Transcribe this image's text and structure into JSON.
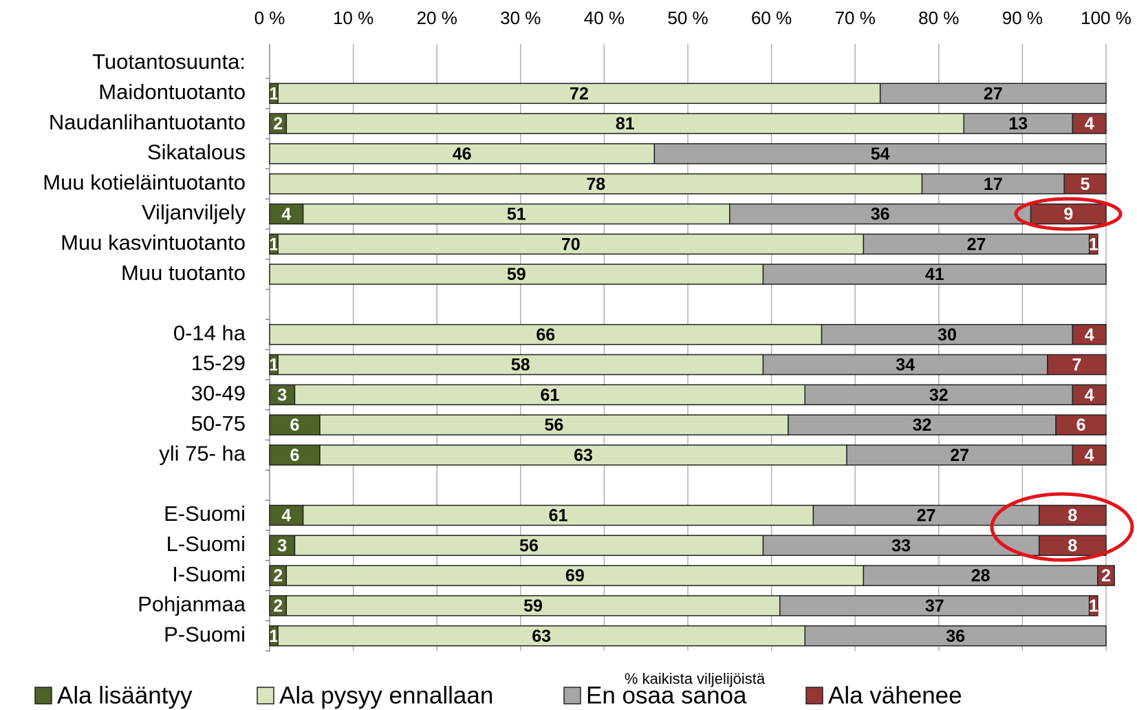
{
  "chart_data": {
    "type": "stacked_barh",
    "xlabel": "% kaikista viljelijöistä",
    "categories": [
      "Tuotantosuunta:",
      "Maidontuotanto",
      "Naudanlihantuotanto",
      "Sikatalous",
      "Muu kotieläintuotanto",
      "Viljanviljely",
      "Muu kasvintuotanto",
      "Muu tuotanto",
      null,
      "0-14 ha",
      "15-29",
      "30-49",
      "50-75",
      "yli 75- ha",
      null,
      "E-Suomi",
      "L-Suomi",
      "I-Suomi",
      "Pohjanmaa",
      "P-Suomi"
    ],
    "series": [
      {
        "name": "Ala lisääntyy",
        "color": "#4f6228",
        "label_color": "#ffffff",
        "values": [
          null,
          1,
          2,
          null,
          null,
          4,
          1,
          null,
          null,
          null,
          1,
          3,
          6,
          6,
          null,
          4,
          3,
          2,
          2,
          1
        ]
      },
      {
        "name": "Ala pysyy ennallaan",
        "color": "#d7e4bd",
        "label_color": "#000000",
        "values": [
          null,
          72,
          81,
          46,
          78,
          51,
          70,
          59,
          null,
          66,
          58,
          61,
          56,
          63,
          null,
          61,
          56,
          69,
          59,
          63
        ]
      },
      {
        "name": "En osaa sanoa",
        "color": "#a6a6a6",
        "label_color": "#000000",
        "values": [
          null,
          27,
          13,
          54,
          17,
          36,
          27,
          41,
          null,
          30,
          34,
          32,
          32,
          27,
          null,
          27,
          33,
          28,
          37,
          36
        ]
      },
      {
        "name": "Ala vähenee",
        "color": "#953735",
        "label_color": "#ffffff",
        "values": [
          null,
          null,
          4,
          null,
          5,
          9,
          1,
          null,
          null,
          4,
          7,
          4,
          6,
          4,
          null,
          8,
          8,
          2,
          1,
          null
        ]
      }
    ],
    "xlim": [
      0,
      100
    ],
    "xticks": [
      {
        "value": 0,
        "label": "0 %"
      },
      {
        "value": 10,
        "label": "10 %"
      },
      {
        "value": 20,
        "label": "20 %"
      },
      {
        "value": 30,
        "label": "30 %"
      },
      {
        "value": 40,
        "label": "40 %"
      },
      {
        "value": 50,
        "label": "50 %"
      },
      {
        "value": 60,
        "label": "60 %"
      },
      {
        "value": 70,
        "label": "70 %"
      },
      {
        "value": 80,
        "label": "80 %"
      },
      {
        "value": 90,
        "label": "90 %"
      },
      {
        "value": 100,
        "label": "100 %"
      }
    ],
    "grid": true,
    "xaxis_position": "top",
    "legend": "bottom"
  }
}
